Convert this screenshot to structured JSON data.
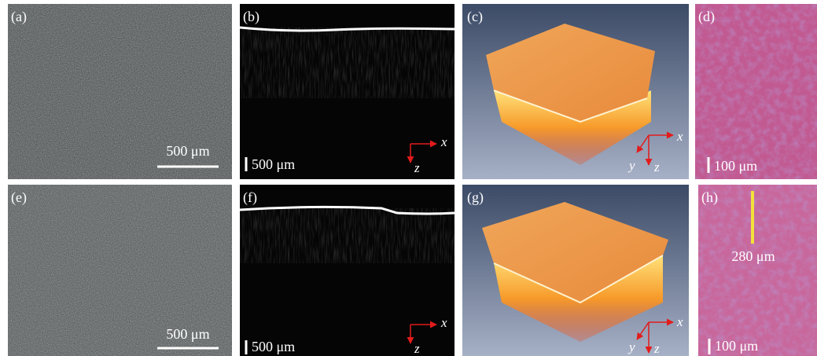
{
  "panels": [
    {
      "label": "(a)",
      "scale_bar": "500 μm"
    },
    {
      "label": "(b)",
      "scale_bar": "500 μm",
      "axes": [
        "x",
        "z"
      ]
    },
    {
      "label": "(c)",
      "axes": [
        "x",
        "y",
        "z"
      ]
    },
    {
      "label": "(d)",
      "scale_bar": "100 μm"
    },
    {
      "label": "(e)",
      "scale_bar": "500 μm"
    },
    {
      "label": "(f)",
      "scale_bar": "500 μm",
      "axes": [
        "x",
        "z"
      ]
    },
    {
      "label": "(g)",
      "axes": [
        "x",
        "y",
        "z"
      ]
    },
    {
      "label": "(h)",
      "scale_bar": "100 μm",
      "depth_label": "280 μm"
    }
  ]
}
